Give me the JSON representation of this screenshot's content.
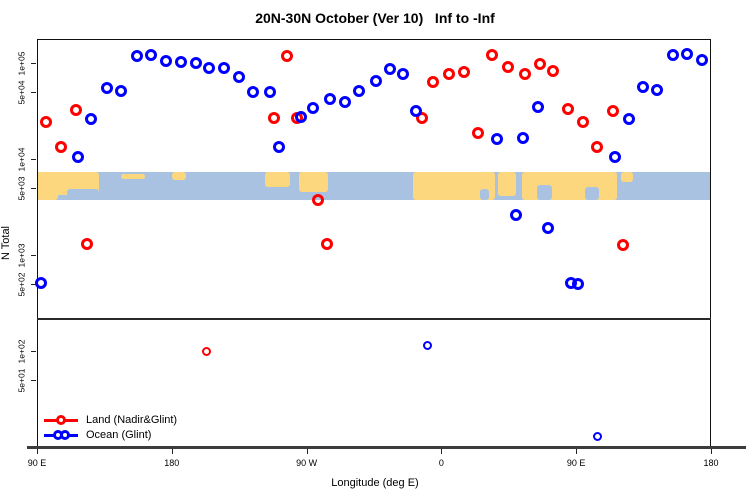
{
  "chart_data": {
    "type": "scatter",
    "title": "20N-30N October (Ver 10)   Inf to -Inf",
    "xlabel": "Longitude (deg E)",
    "ylabel": "N Total",
    "x_axis": {
      "span_deg": 450,
      "ticks": [
        {
          "t": 0,
          "label": "90 E"
        },
        {
          "t": 90,
          "label": "180"
        },
        {
          "t": 180,
          "label": "90 W"
        },
        {
          "t": 270,
          "label": "0"
        },
        {
          "t": 360,
          "label": "90 E"
        },
        {
          "t": 450,
          "label": "180"
        }
      ]
    },
    "y_axis": {
      "scale": "log",
      "lim": [
        9.8,
        177800
      ],
      "ticks": [
        {
          "v": 100000,
          "label": "1e+05"
        },
        {
          "v": 50000,
          "label": "5e+04"
        },
        {
          "v": 10000,
          "label": "1e+04"
        },
        {
          "v": 5000,
          "label": "5e+03"
        },
        {
          "v": 1000,
          "label": "1e+03"
        },
        {
          "v": 500,
          "label": "5e+02"
        },
        {
          "v": 100,
          "label": "1e+02"
        },
        {
          "v": 50,
          "label": "5e+01"
        }
      ]
    },
    "separator_value": 220,
    "series": [
      {
        "name": "Land (Nadir&Glint)",
        "color": "#ff0000",
        "legend_circles": 1,
        "points": [
          {
            "t": 6.0,
            "v": 24300
          },
          {
            "t": 16.0,
            "v": 13300
          },
          {
            "t": 26.0,
            "v": 32400
          },
          {
            "t": 33.4,
            "v": 1300
          },
          {
            "t": 113.5,
            "v": 99,
            "s": 1
          },
          {
            "t": 158.2,
            "v": 26700
          },
          {
            "t": 166.9,
            "v": 118000
          },
          {
            "t": 173.6,
            "v": 26700
          },
          {
            "t": 187.6,
            "v": 3730
          },
          {
            "t": 193.6,
            "v": 1300
          },
          {
            "t": 257.1,
            "v": 26700
          },
          {
            "t": 264.4,
            "v": 63300
          },
          {
            "t": 275.1,
            "v": 76700
          },
          {
            "t": 285.1,
            "v": 80400
          },
          {
            "t": 294.5,
            "v": 18700
          },
          {
            "t": 303.8,
            "v": 121000
          },
          {
            "t": 314.5,
            "v": 90600
          },
          {
            "t": 325.8,
            "v": 76700
          },
          {
            "t": 335.9,
            "v": 97700
          },
          {
            "t": 344.5,
            "v": 82300
          },
          {
            "t": 354.6,
            "v": 33200
          },
          {
            "t": 364.6,
            "v": 24300
          },
          {
            "t": 373.9,
            "v": 13300
          },
          {
            "t": 384.6,
            "v": 31600
          },
          {
            "t": 391.3,
            "v": 1270
          }
        ]
      },
      {
        "name": "Ocean (Glint)",
        "color": "#0000ff",
        "legend_circles": 2,
        "points": [
          {
            "t": 2.7,
            "v": 507
          },
          {
            "t": 27.4,
            "v": 10500
          },
          {
            "t": 36.1,
            "v": 26100
          },
          {
            "t": 46.7,
            "v": 54900
          },
          {
            "t": 56.1,
            "v": 51200
          },
          {
            "t": 66.8,
            "v": 118000
          },
          {
            "t": 76.1,
            "v": 121000
          },
          {
            "t": 86.1,
            "v": 105000
          },
          {
            "t": 96.2,
            "v": 102000
          },
          {
            "t": 106.2,
            "v": 100000
          },
          {
            "t": 114.8,
            "v": 88700
          },
          {
            "t": 124.9,
            "v": 88700
          },
          {
            "t": 134.9,
            "v": 71500
          },
          {
            "t": 144.2,
            "v": 49900
          },
          {
            "t": 155.6,
            "v": 50000
          },
          {
            "t": 161.6,
            "v": 13300
          },
          {
            "t": 176.3,
            "v": 27400
          },
          {
            "t": 184.3,
            "v": 34000
          },
          {
            "t": 195.6,
            "v": 42200
          },
          {
            "t": 205.6,
            "v": 39300
          },
          {
            "t": 215.0,
            "v": 51100
          },
          {
            "t": 226.3,
            "v": 64900
          },
          {
            "t": 235.7,
            "v": 86600
          },
          {
            "t": 244.4,
            "v": 76700
          },
          {
            "t": 253.1,
            "v": 31600
          },
          {
            "t": 260.4,
            "v": 115,
            "s": 1
          },
          {
            "t": 307.1,
            "v": 16100
          },
          {
            "t": 319.8,
            "v": 2620
          },
          {
            "t": 324.5,
            "v": 16500
          },
          {
            "t": 334.5,
            "v": 34800
          },
          {
            "t": 341.2,
            "v": 1930
          },
          {
            "t": 356.5,
            "v": 507
          },
          {
            "t": 361.2,
            "v": 495
          },
          {
            "t": 373.9,
            "v": 13,
            "s": 1
          },
          {
            "t": 385.9,
            "v": 10500
          },
          {
            "t": 395.3,
            "v": 26100
          },
          {
            "t": 404.6,
            "v": 56200
          },
          {
            "t": 414.0,
            "v": 52400
          },
          {
            "t": 424.7,
            "v": 121000
          },
          {
            "t": 434.0,
            "v": 124000
          },
          {
            "t": 444.0,
            "v": 107000
          }
        ]
      }
    ],
    "map_strip": {
      "v_top": 7300,
      "v_bottom": 3740,
      "ocean_color": "#a9c2e2",
      "land_color": "#fdd77e",
      "land_patches": [
        {
          "t0": 0,
          "t1": 41.5,
          "f0": 0,
          "f1": 0.82
        },
        {
          "t0": 0,
          "t1": 14,
          "f0": 0,
          "f1": 1
        },
        {
          "t0": 56,
          "t1": 72,
          "f0": 0.05,
          "f1": 0.25
        },
        {
          "t0": 90,
          "t1": 99.5,
          "f0": 0,
          "f1": 0.28
        },
        {
          "t0": 152,
          "t1": 169,
          "f0": 0,
          "f1": 0.55
        },
        {
          "t0": 175,
          "t1": 194,
          "f0": 0,
          "f1": 0.72
        },
        {
          "t0": 251,
          "t1": 306,
          "f0": 0,
          "f1": 1
        },
        {
          "t0": 308,
          "t1": 320,
          "f0": 0,
          "f1": 0.85
        },
        {
          "t0": 324,
          "t1": 387,
          "f0": 0,
          "f1": 1
        },
        {
          "t0": 390,
          "t1": 398,
          "f0": 0,
          "f1": 0.35
        }
      ],
      "ocean_notches": [
        {
          "t0": 20,
          "t1": 41.5,
          "f0": 0.6,
          "f1": 1
        },
        {
          "t0": 296,
          "t1": 302,
          "f0": 0.6,
          "f1": 1
        },
        {
          "t0": 334,
          "t1": 344,
          "f0": 0.45,
          "f1": 1
        },
        {
          "t0": 366,
          "t1": 375,
          "f0": 0.55,
          "f1": 1
        }
      ]
    }
  }
}
